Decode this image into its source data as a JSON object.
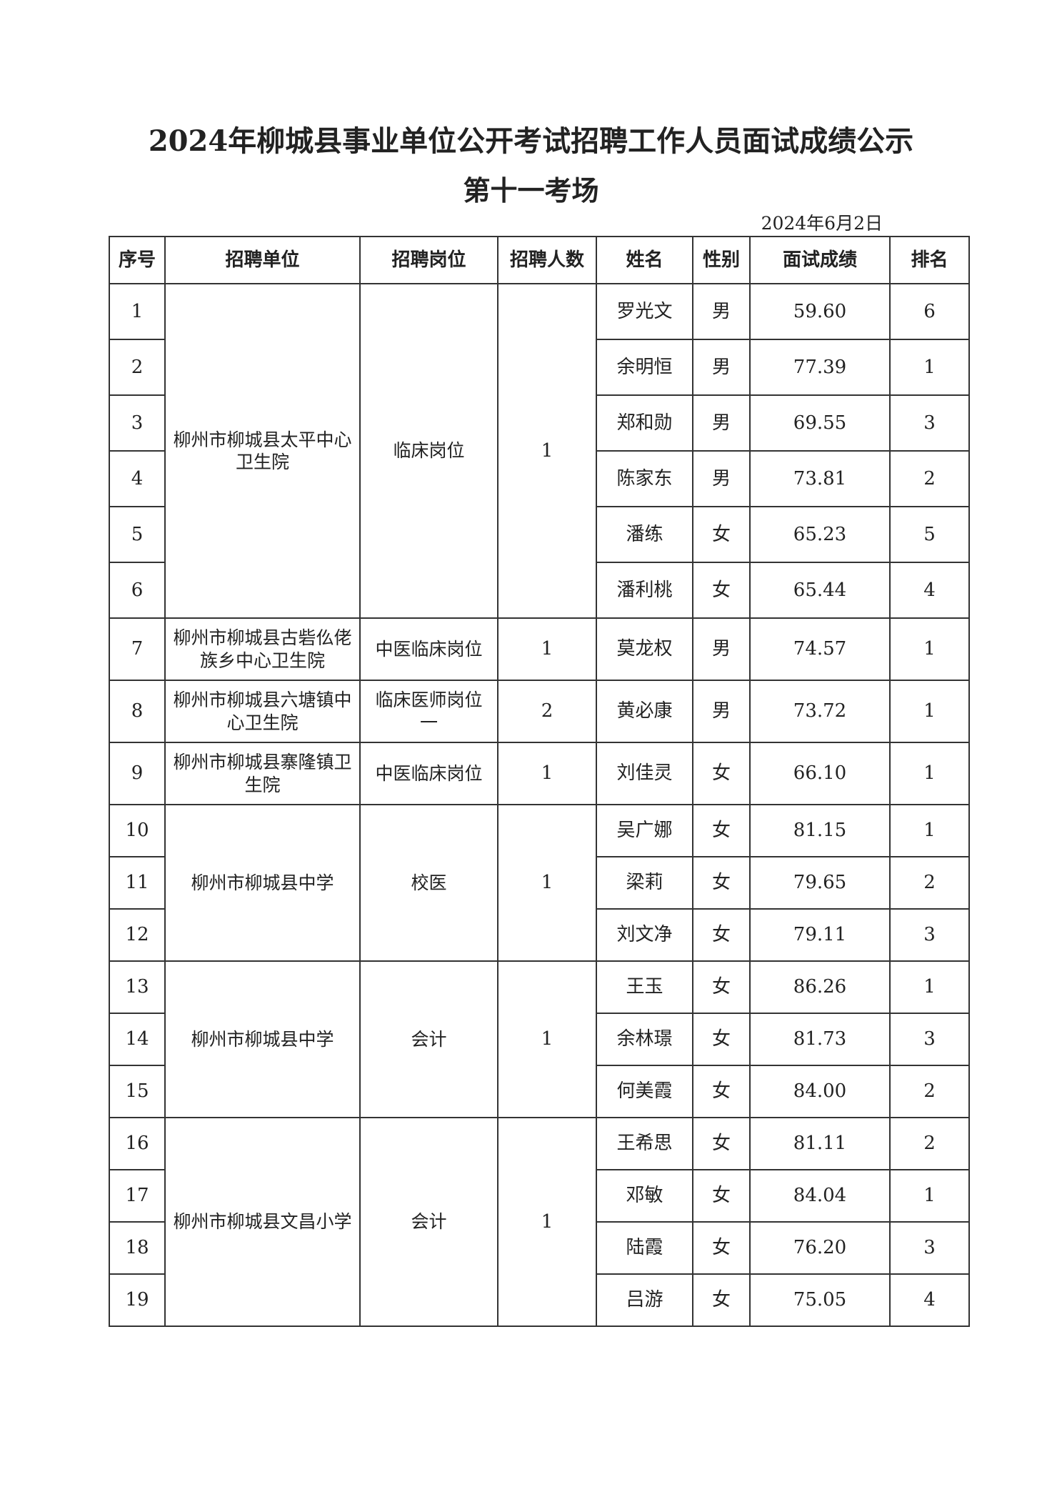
{
  "title": "2024年柳城县事业单位公开考试招聘工作人员面试成绩公示",
  "subtitle": "第十一考场",
  "date": "2024年6月2日",
  "headers": [
    "序号",
    "招聘单位",
    "招聘岗位",
    "招聘人数",
    "姓名",
    "性别",
    "面试成绩",
    "排名"
  ],
  "groups": [
    {
      "unit": "柳州市柳城县太平中心卫生院",
      "post": "临床岗位",
      "count": "1"
    },
    {
      "unit": "柳州市柳城县古砦仫佬族乡中心卫生院",
      "post": "中医临床岗位",
      "count": "1"
    },
    {
      "unit": "柳州市柳城县六塘镇中心卫生院",
      "post": "临床医师岗位一",
      "count": "2"
    },
    {
      "unit": "柳州市柳城县寨隆镇卫生院",
      "post": "中医临床岗位",
      "count": "1"
    },
    {
      "unit": "柳州市柳城县中学",
      "post": "校医",
      "count": "1"
    },
    {
      "unit": "柳州市柳城县中学",
      "post": "会计",
      "count": "1"
    },
    {
      "unit": "柳州市柳城县文昌小学",
      "post": "会计",
      "count": "1"
    }
  ],
  "rows": [
    {
      "no": "1",
      "name": "罗光文",
      "gender": "男",
      "score": "59.60",
      "rank": "6"
    },
    {
      "no": "2",
      "name": "余明恒",
      "gender": "男",
      "score": "77.39",
      "rank": "1"
    },
    {
      "no": "3",
      "name": "郑和勋",
      "gender": "男",
      "score": "69.55",
      "rank": "3"
    },
    {
      "no": "4",
      "name": "陈家东",
      "gender": "男",
      "score": "73.81",
      "rank": "2"
    },
    {
      "no": "5",
      "name": "潘练",
      "gender": "女",
      "score": "65.23",
      "rank": "5"
    },
    {
      "no": "6",
      "name": "潘利桃",
      "gender": "女",
      "score": "65.44",
      "rank": "4"
    },
    {
      "no": "7",
      "name": "莫龙权",
      "gender": "男",
      "score": "74.57",
      "rank": "1"
    },
    {
      "no": "8",
      "name": "黄必康",
      "gender": "男",
      "score": "73.72",
      "rank": "1"
    },
    {
      "no": "9",
      "name": "刘佳灵",
      "gender": "女",
      "score": "66.10",
      "rank": "1"
    },
    {
      "no": "10",
      "name": "吴广娜",
      "gender": "女",
      "score": "81.15",
      "rank": "1"
    },
    {
      "no": "11",
      "name": "梁莉",
      "gender": "女",
      "score": "79.65",
      "rank": "2"
    },
    {
      "no": "12",
      "name": "刘文净",
      "gender": "女",
      "score": "79.11",
      "rank": "3"
    },
    {
      "no": "13",
      "name": "王玉",
      "gender": "女",
      "score": "86.26",
      "rank": "1"
    },
    {
      "no": "14",
      "name": "余林璟",
      "gender": "女",
      "score": "81.73",
      "rank": "3"
    },
    {
      "no": "15",
      "name": "何美霞",
      "gender": "女",
      "score": "84.00",
      "rank": "2"
    },
    {
      "no": "16",
      "name": "王希思",
      "gender": "女",
      "score": "81.11",
      "rank": "2"
    },
    {
      "no": "17",
      "name": "邓敏",
      "gender": "女",
      "score": "84.04",
      "rank": "1"
    },
    {
      "no": "18",
      "name": "陆霞",
      "gender": "女",
      "score": "76.20",
      "rank": "3"
    },
    {
      "no": "19",
      "name": "吕游",
      "gender": "女",
      "score": "75.05",
      "rank": "4"
    }
  ]
}
